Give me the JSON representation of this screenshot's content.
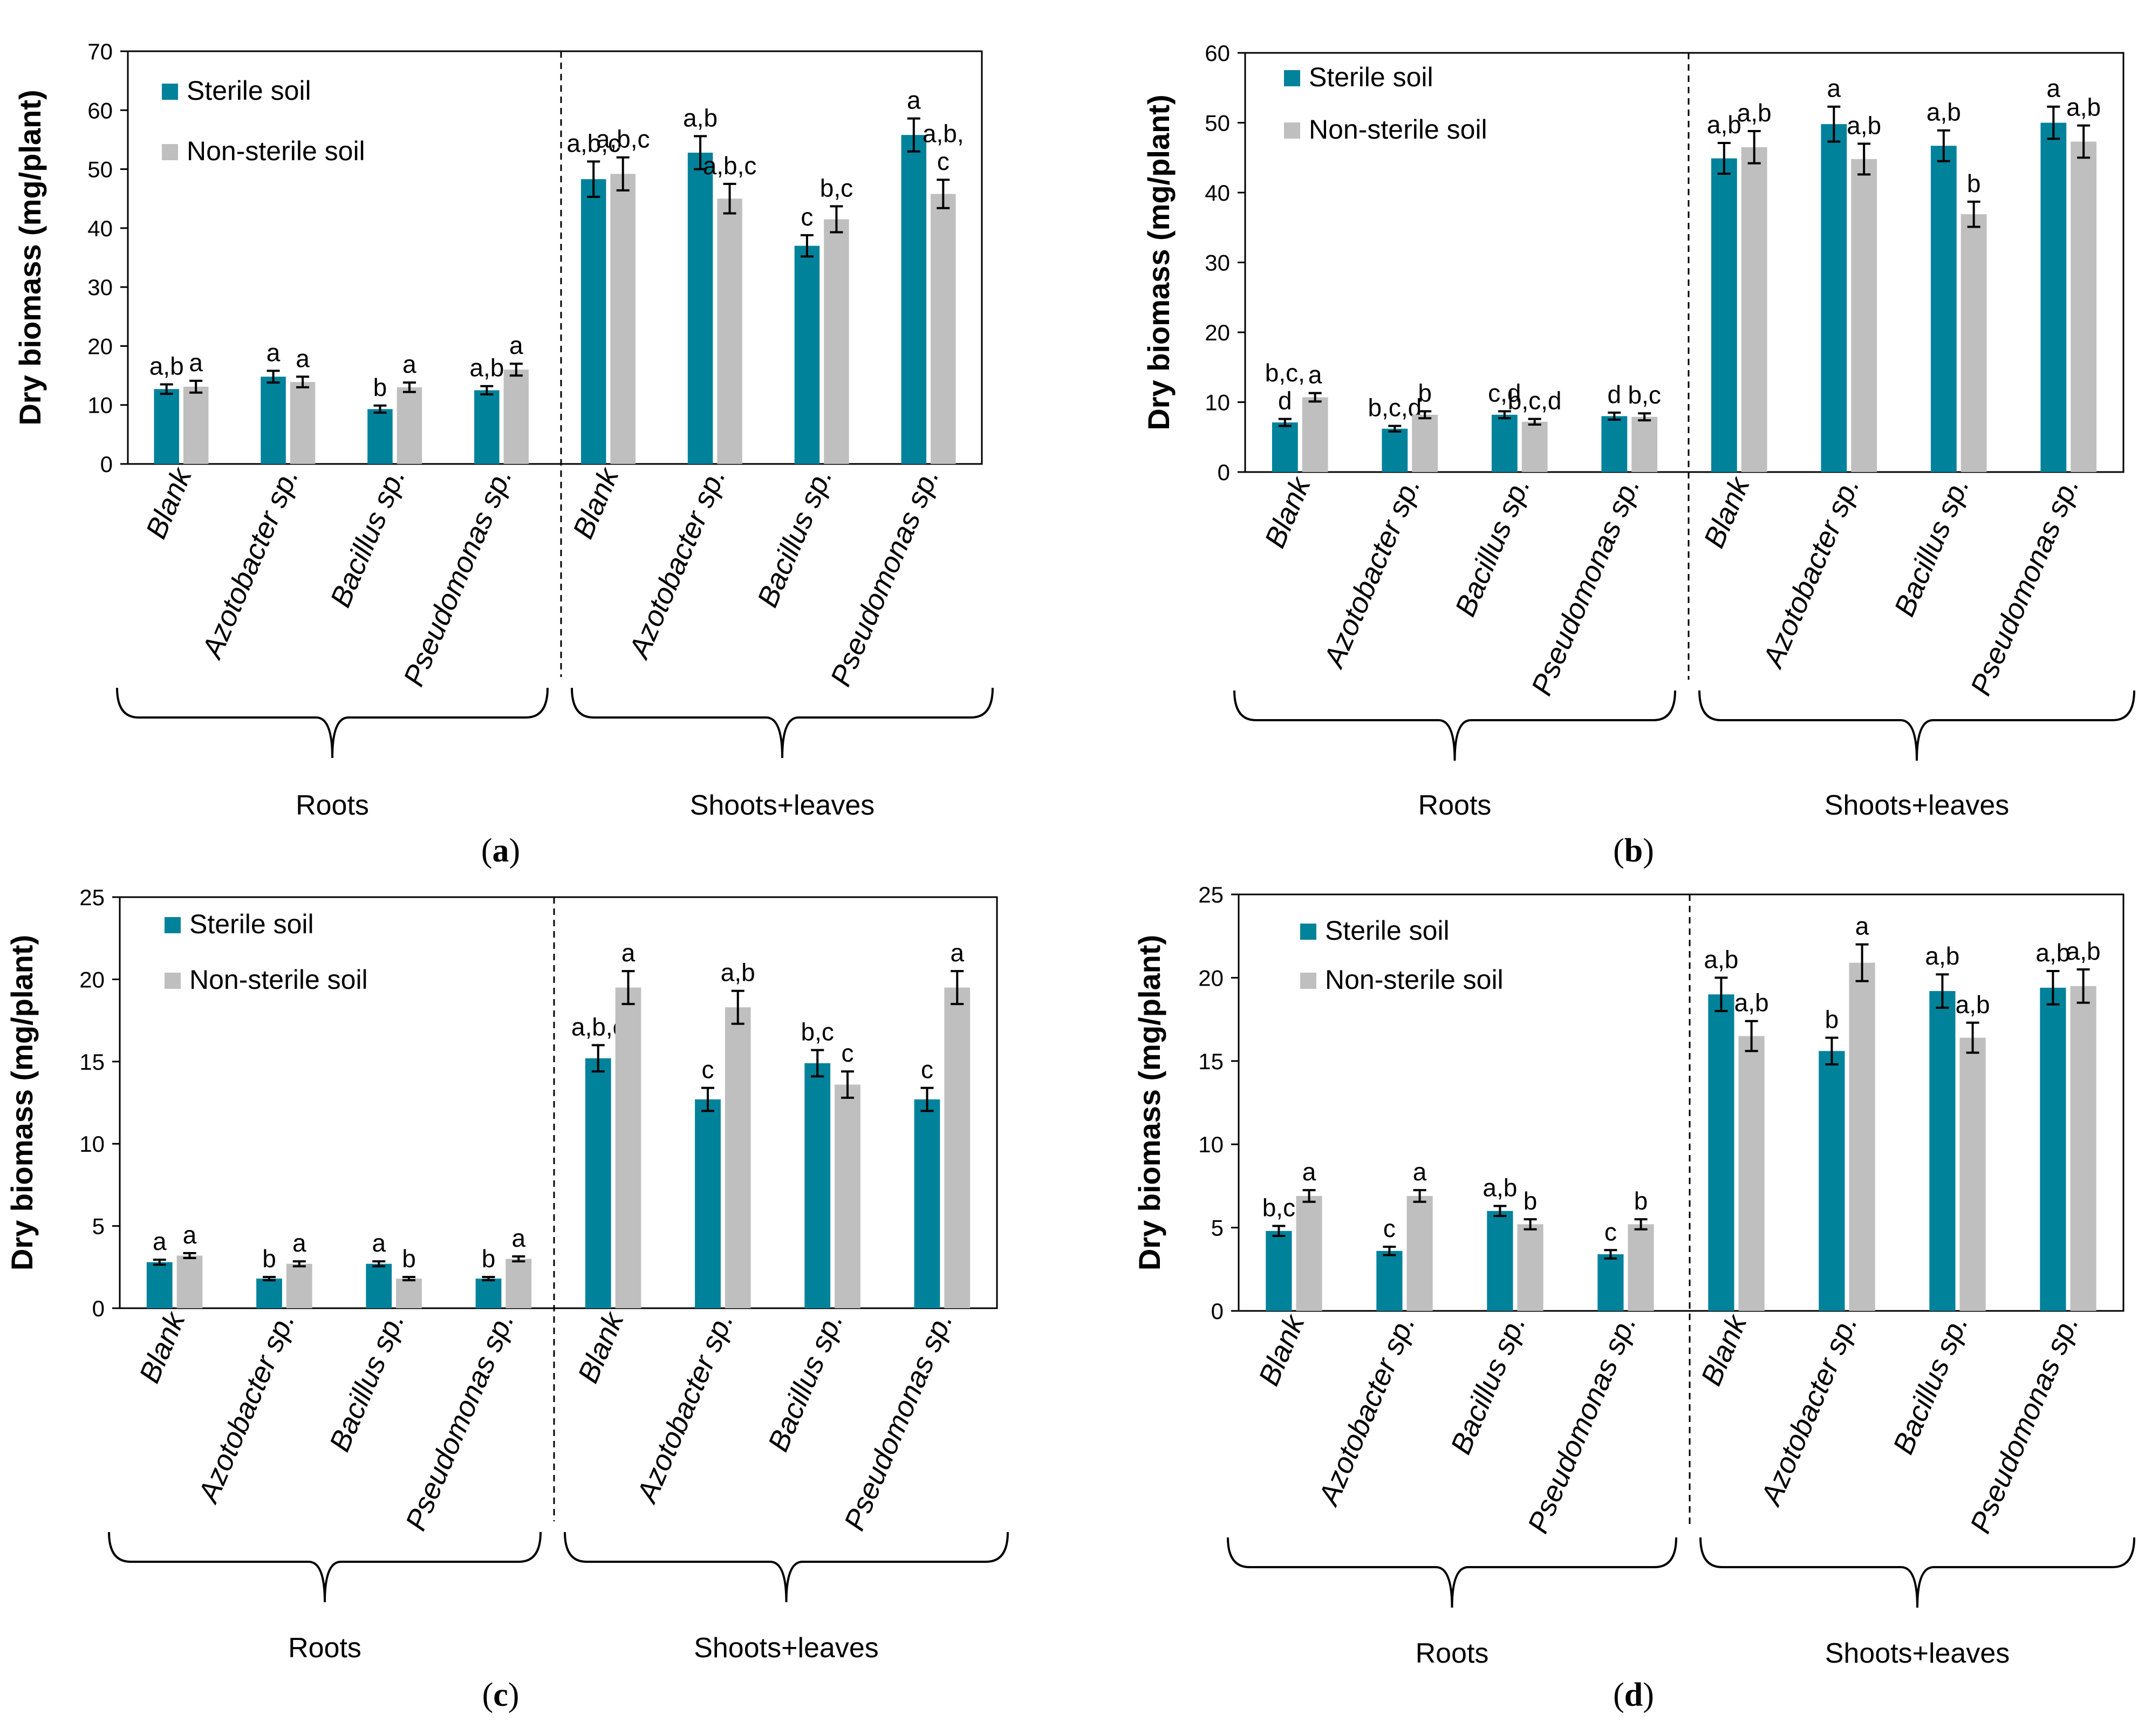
{
  "colors": {
    "sterile": "#00829b",
    "non_sterile": "#bfbfbf",
    "axis": "#000000",
    "background": "#ffffff"
  },
  "chart_data": [
    {
      "type": "bar",
      "panel_label": "a",
      "ylabel": "Dry biomass  (mg/plant)",
      "ylim": [
        0,
        70
      ],
      "yticks": [
        0,
        10,
        20,
        30,
        40,
        50,
        60,
        70
      ],
      "categories": [
        "Blank",
        "Azotobacter sp.",
        "Bacillus sp.",
        "Pseudomonas sp.",
        "Blank",
        "Azotobacter sp.",
        "Bacillus sp.",
        "Pseudomonas sp."
      ],
      "groups": [
        "Roots",
        "Shoots+leaves"
      ],
      "legend": [
        "Sterile soil",
        "Non-sterile soil"
      ],
      "series": [
        {
          "name": "Sterile soil",
          "values": [
            12.7,
            14.8,
            9.3,
            12.5,
            48.3,
            52.8,
            37.0,
            55.8
          ],
          "errors": [
            0.8,
            1.0,
            0.6,
            0.7,
            3.0,
            2.8,
            1.8,
            2.8
          ],
          "letters": [
            "a,b",
            "a",
            "b",
            "a,b",
            "a,b,c",
            "a,b",
            "c",
            "a"
          ]
        },
        {
          "name": "Non-sterile soil",
          "values": [
            13.1,
            13.9,
            13.0,
            16.0,
            49.2,
            45.0,
            41.5,
            45.8
          ],
          "errors": [
            1.0,
            0.9,
            0.8,
            1.0,
            2.8,
            2.5,
            2.2,
            2.4
          ],
          "letters": [
            "a",
            "a",
            "a",
            "a",
            "a,b,c",
            "a,b,c",
            "b,c",
            "a,b,\nc"
          ]
        }
      ]
    },
    {
      "type": "bar",
      "panel_label": "b",
      "ylabel": "Dry biomass (mg/plant)",
      "ylim": [
        0,
        60
      ],
      "yticks": [
        0,
        10,
        20,
        30,
        40,
        50,
        60
      ],
      "categories": [
        "Blank",
        "Azotobacter sp.",
        "Bacillus sp.",
        "Pseudomonas sp.",
        "Blank",
        "Azotobacter sp.",
        "Bacillus sp.",
        "Pseudomonas sp."
      ],
      "groups": [
        "Roots",
        "Shoots+leaves"
      ],
      "legend": [
        "Sterile soil",
        "Non-sterile soil"
      ],
      "series": [
        {
          "name": "Sterile soil",
          "values": [
            7.1,
            6.2,
            8.2,
            8.0,
            44.9,
            49.8,
            46.7,
            50.0
          ],
          "errors": [
            0.5,
            0.4,
            0.5,
            0.5,
            2.2,
            2.5,
            2.2,
            2.3
          ],
          "letters": [
            "b,c,\nd",
            "b,c,d",
            "c,d",
            "d",
            "a,b",
            "a",
            "a,b",
            "a"
          ]
        },
        {
          "name": "Non-sterile soil",
          "values": [
            10.7,
            8.2,
            7.2,
            7.9,
            46.5,
            44.8,
            36.9,
            47.3
          ],
          "errors": [
            0.6,
            0.5,
            0.4,
            0.5,
            2.3,
            2.2,
            1.8,
            2.3
          ],
          "letters": [
            "a",
            "b",
            "b,c,d",
            "b,c",
            "a,b",
            "a,b",
            "b",
            "a,b"
          ]
        }
      ]
    },
    {
      "type": "bar",
      "panel_label": "c",
      "ylabel": "Dry biomass (mg/plant)",
      "ylim": [
        0,
        25
      ],
      "yticks": [
        0,
        5,
        10,
        15,
        20,
        25
      ],
      "categories": [
        "Blank",
        "Azotobacter sp.",
        "Bacillus sp.",
        "Pseudomonas sp.",
        "Blank",
        "Azotobacter sp.",
        "Bacillus sp.",
        "Pseudomonas sp."
      ],
      "groups": [
        "Roots",
        "Shoots+leaves"
      ],
      "legend": [
        "Sterile soil",
        "Non-sterile soil"
      ],
      "series": [
        {
          "name": "Sterile soil",
          "values": [
            2.8,
            1.8,
            2.7,
            1.8,
            15.2,
            12.7,
            14.9,
            12.7
          ],
          "errors": [
            0.15,
            0.1,
            0.15,
            0.1,
            0.8,
            0.7,
            0.8,
            0.7
          ],
          "letters": [
            "a",
            "b",
            "a",
            "b",
            "a,b,c",
            "c",
            "b,c",
            "c"
          ]
        },
        {
          "name": "Non-sterile soil",
          "values": [
            3.2,
            2.7,
            1.8,
            3.0,
            19.5,
            18.3,
            13.6,
            19.5
          ],
          "errors": [
            0.15,
            0.15,
            0.1,
            0.15,
            1.0,
            1.0,
            0.8,
            1.0
          ],
          "letters": [
            "a",
            "a",
            "b",
            "a",
            "a",
            "a,b",
            "c",
            "a"
          ]
        }
      ]
    },
    {
      "type": "bar",
      "panel_label": "d",
      "ylabel": "Dry biomass (mg/plant)",
      "ylim": [
        0,
        25
      ],
      "yticks": [
        0,
        5,
        10,
        15,
        20,
        25
      ],
      "categories": [
        "Blank",
        "Azotobacter sp.",
        "Bacillus sp.",
        "Pseudomonas sp.",
        "Blank",
        "Azotobacter sp.",
        "Bacillus sp.",
        "Pseudomonas sp."
      ],
      "groups": [
        "Roots",
        "Shoots+leaves"
      ],
      "legend": [
        "Sterile soil",
        "Non-sterile soil"
      ],
      "series": [
        {
          "name": "Sterile soil",
          "values": [
            4.8,
            3.6,
            6.0,
            3.4,
            19.0,
            15.6,
            19.2,
            19.4
          ],
          "errors": [
            0.3,
            0.25,
            0.3,
            0.25,
            1.0,
            0.8,
            1.0,
            1.0
          ],
          "letters": [
            "b,c",
            "c",
            "a,b",
            "c",
            "a,b",
            "b",
            "a,b",
            "a,b"
          ]
        },
        {
          "name": "Non-sterile soil",
          "values": [
            6.9,
            6.9,
            5.2,
            5.2,
            16.5,
            20.9,
            16.4,
            19.5
          ],
          "errors": [
            0.35,
            0.35,
            0.3,
            0.3,
            0.9,
            1.1,
            0.9,
            1.0
          ],
          "letters": [
            "a",
            "a",
            "b",
            "b",
            "a,b",
            "a",
            "a,b",
            "a,b"
          ]
        }
      ]
    }
  ]
}
